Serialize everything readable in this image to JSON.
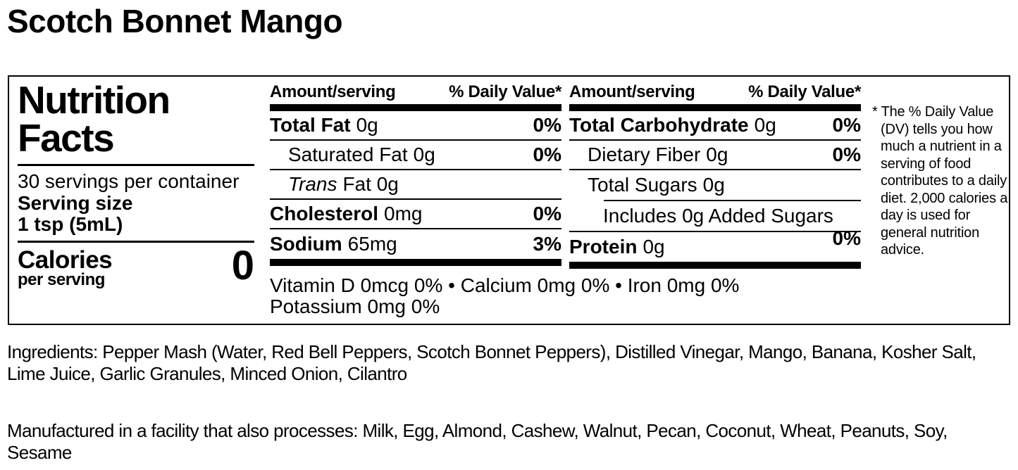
{
  "page": {
    "title": "Scotch Bonnet Mango",
    "ingredients": "Ingredients: Pepper Mash (Water, Red Bell Peppers, Scotch Bonnet Peppers), Distilled Vinegar, Mango, Banana, Kosher Salt, Lime Juice, Garlic Granules, Minced Onion, Cilantro",
    "allergen": "Manufactured in a facility that also processes: Milk, Egg, Almond, Cashew, Walnut, Pecan, Coconut, Wheat, Peanuts, Soy, Sesame"
  },
  "label": {
    "heading": "Nutrition Facts",
    "servings_per_container": "30 servings per container",
    "serving_size_label": "Serving size",
    "serving_size_value": "1 tsp (5mL)",
    "calories_label": "Calories",
    "calories_sublabel": "per serving",
    "calories_value": "0",
    "header_amount": "Amount/serving",
    "header_dv": "% Daily Value*",
    "mid_rows": [
      {
        "name": "Total Fat",
        "amount": "0g",
        "dv": "0%"
      },
      {
        "name": "Saturated Fat",
        "amount": "0g",
        "dv": "0%"
      },
      {
        "name": "Trans",
        "amount": "Fat 0g",
        "dv": ""
      },
      {
        "name": "Cholesterol",
        "amount": "0mg",
        "dv": "0%"
      },
      {
        "name": "Sodium",
        "amount": "65mg",
        "dv": "3%"
      }
    ],
    "right_rows": [
      {
        "name": "Total Carbohydrate",
        "amount": "0g",
        "dv": "0%"
      },
      {
        "name": "Dietary Fiber",
        "amount": "0g",
        "dv": "0%"
      },
      {
        "name": "Total Sugars",
        "amount": "0g",
        "dv": ""
      },
      {
        "name": "Includes 0g Added Sugars",
        "amount": "",
        "dv": "0%"
      },
      {
        "name": "Protein",
        "amount": "0g",
        "dv": ""
      }
    ],
    "micronutrients_line1": "Vitamin D 0mcg 0% • Calcium 0mg 0% • Iron 0mg 0%",
    "micronutrients_line2": "Potassium 0mg 0%",
    "footnote": "* The % Daily Value (DV) tells you how much a nutrient in a serving of food contributes to a daily diet. 2,000 calories a day is used for general nutrition advice.",
    "colors": {
      "text": "#000000",
      "background": "#ffffff"
    }
  }
}
